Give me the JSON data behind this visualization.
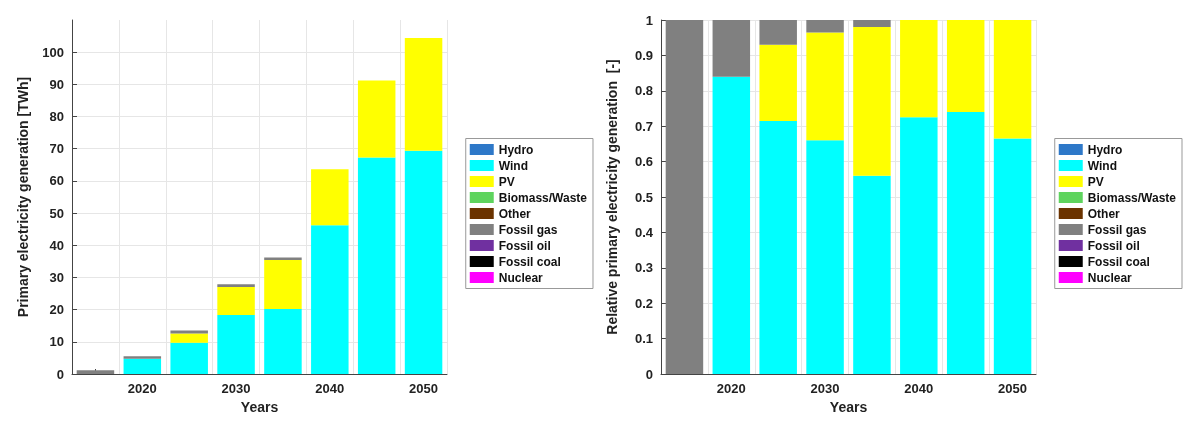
{
  "chart_data": [
    {
      "type": "bar",
      "stacked": true,
      "xlabel": "Years",
      "ylabel": "Primary electricity generation [TWh]",
      "categories": [
        null,
        "2020",
        null,
        "2030",
        null,
        "2040",
        null,
        "2050"
      ],
      "ylim": [
        0,
        110
      ],
      "yticks": [
        0,
        10,
        20,
        30,
        40,
        50,
        60,
        70,
        80,
        90,
        100
      ],
      "grid": true,
      "legend": "right",
      "series": [
        {
          "name": "Hydro",
          "color": "#2e78c8",
          "values": [
            0,
            0,
            0,
            0,
            0,
            0,
            0,
            0
          ]
        },
        {
          "name": "Wind",
          "color": "#00ffff",
          "values": [
            0,
            4.7,
            9.7,
            18.3,
            20.2,
            46.2,
            67.3,
            69.4
          ]
        },
        {
          "name": "PV",
          "color": "#ffff00",
          "values": [
            0,
            0,
            2.9,
            8.7,
            15.2,
            17.4,
            23.9,
            35.0
          ]
        },
        {
          "name": "Biomass/Waste",
          "color": "#5ed45e",
          "values": [
            0,
            0,
            0,
            0,
            0,
            0,
            0,
            0
          ]
        },
        {
          "name": "Other",
          "color": "#6b3300",
          "values": [
            0,
            0,
            0,
            0,
            0,
            0,
            0,
            0
          ]
        },
        {
          "name": "Fossil gas",
          "color": "#808080",
          "values": [
            1.2,
            0.8,
            0.9,
            0.9,
            0.8,
            0,
            0,
            0
          ]
        },
        {
          "name": "Fossil oil",
          "color": "#7030a0",
          "values": [
            0,
            0,
            0,
            0,
            0,
            0,
            0,
            0
          ]
        },
        {
          "name": "Fossil coal",
          "color": "#000000",
          "values": [
            0,
            0,
            0,
            0,
            0,
            0,
            0,
            0
          ]
        },
        {
          "name": "Nuclear",
          "color": "#ff00ff",
          "values": [
            0,
            0,
            0,
            0,
            0,
            0,
            0,
            0
          ]
        }
      ]
    },
    {
      "type": "bar",
      "stacked": true,
      "xlabel": "Years",
      "ylabel": "Relative primary electricity generation  [-]",
      "categories": [
        null,
        "2020",
        null,
        "2030",
        null,
        "2040",
        null,
        "2050"
      ],
      "ylim": [
        0,
        1
      ],
      "yticks": [
        0,
        0.1,
        0.2,
        0.3,
        0.4,
        0.5,
        0.6,
        0.7,
        0.8,
        0.9,
        1
      ],
      "grid": true,
      "legend": "right",
      "series": [
        {
          "name": "Hydro",
          "color": "#2e78c8",
          "values": [
            0,
            0,
            0,
            0,
            0,
            0,
            0,
            0
          ]
        },
        {
          "name": "Wind",
          "color": "#00ffff",
          "values": [
            0,
            0.84,
            0.715,
            0.66,
            0.56,
            0.725,
            0.74,
            0.665
          ]
        },
        {
          "name": "PV",
          "color": "#ffff00",
          "values": [
            0,
            0,
            0.215,
            0.305,
            0.42,
            0.275,
            0.26,
            0.335
          ]
        },
        {
          "name": "Biomass/Waste",
          "color": "#5ed45e",
          "values": [
            0,
            0,
            0,
            0,
            0,
            0,
            0,
            0
          ]
        },
        {
          "name": "Other",
          "color": "#6b3300",
          "values": [
            0,
            0,
            0,
            0,
            0,
            0,
            0,
            0
          ]
        },
        {
          "name": "Fossil gas",
          "color": "#808080",
          "values": [
            1,
            0.16,
            0.07,
            0.035,
            0.02,
            0,
            0,
            0
          ]
        },
        {
          "name": "Fossil oil",
          "color": "#7030a0",
          "values": [
            0,
            0,
            0,
            0,
            0,
            0,
            0,
            0
          ]
        },
        {
          "name": "Fossil coal",
          "color": "#000000",
          "values": [
            0,
            0,
            0,
            0,
            0,
            0,
            0,
            0
          ]
        },
        {
          "name": "Nuclear",
          "color": "#ff00ff",
          "values": [
            0,
            0,
            0,
            0,
            0,
            0,
            0,
            0
          ]
        }
      ]
    }
  ]
}
